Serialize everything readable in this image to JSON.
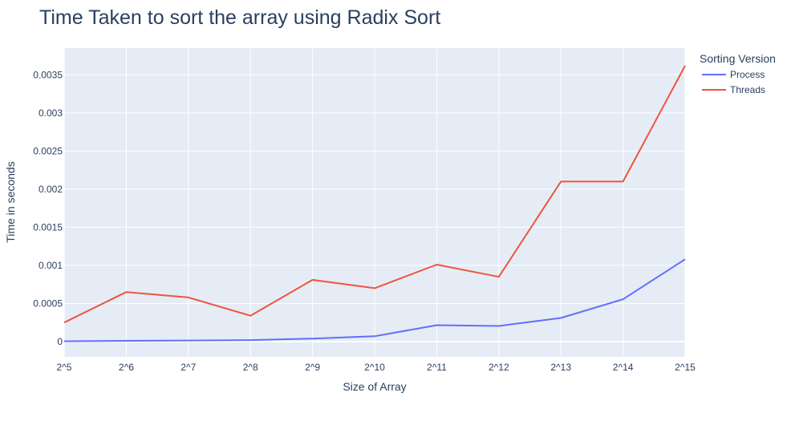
{
  "chart_data": {
    "type": "line",
    "title": "Time Taken to sort the array using Radix Sort",
    "xlabel": "Size of Array",
    "ylabel": "Time in seconds",
    "categories": [
      "2^5",
      "2^6",
      "2^7",
      "2^8",
      "2^9",
      "2^10",
      "2^11",
      "2^12",
      "2^13",
      "2^14",
      "2^15"
    ],
    "ylim": [
      -0.0002,
      0.00385
    ],
    "yticks": [
      0,
      0.0005,
      0.001,
      0.0015,
      0.002,
      0.0025,
      0.003,
      0.0035
    ],
    "ytick_labels": [
      "0",
      "0.0005",
      "0.001",
      "0.0015",
      "0.002",
      "0.0025",
      "0.003",
      "0.0035"
    ],
    "legend_title": "Sorting Version",
    "legend_position": "top-right",
    "grid": true,
    "plot_background": "#e5ecf6",
    "series": [
      {
        "name": "Process",
        "color": "#636efa",
        "values": [
          5e-06,
          1e-05,
          1.5e-05,
          2e-05,
          4e-05,
          7e-05,
          0.000215,
          0.000205,
          0.00031,
          0.000555,
          0.00108
        ]
      },
      {
        "name": "Threads",
        "color": "#ef553b",
        "values": [
          0.00025,
          0.00065,
          0.00058,
          0.00034,
          0.00081,
          0.0007,
          0.00101,
          0.00085,
          0.0021,
          0.0021,
          0.00362
        ]
      }
    ]
  }
}
